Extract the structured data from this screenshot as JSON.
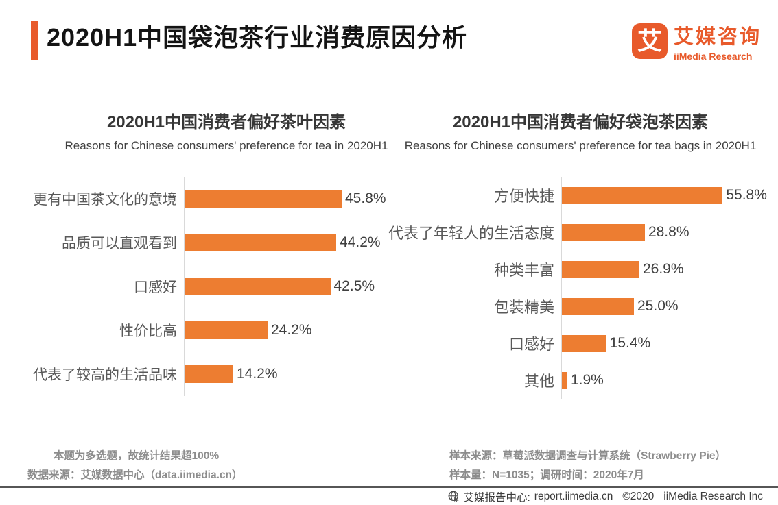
{
  "header": {
    "title": "2020H1中国袋泡茶行业消费原因分析"
  },
  "logo": {
    "mark": "艾",
    "name_cn": "艾媒咨询",
    "name_en": "iiMedia Research"
  },
  "colors": {
    "accent": "#e85a2b",
    "bar": "#ed7d31",
    "axis_line": "#d9d9d9",
    "divider": "#565656"
  },
  "chart_data": [
    {
      "type": "bar",
      "orientation": "horizontal",
      "title": "2020H1中国消费者偏好茶叶因素",
      "subtitle": "Reasons for Chinese consumers' preference for tea in 2020H1",
      "categories": [
        "更有中国茶文化的意境",
        "品质可以直观看到",
        "口感好",
        "性价比高",
        "代表了较高的生活品味"
      ],
      "values": [
        45.8,
        44.2,
        42.5,
        24.2,
        14.2
      ],
      "unit": "%",
      "xlim": [
        0,
        50
      ],
      "grid": false,
      "legend": false,
      "value_labels": [
        "45.8%",
        "44.2%",
        "42.5%",
        "24.2%",
        "14.2%"
      ]
    },
    {
      "type": "bar",
      "orientation": "horizontal",
      "title": "2020H1中国消费者偏好袋泡茶因素",
      "subtitle": "Reasons for Chinese consumers' preference for tea bags in 2020H1",
      "categories": [
        "方便快捷",
        "代表了年轻人的生活态度",
        "种类丰富",
        "包装精美",
        "口感好",
        "其他"
      ],
      "values": [
        55.8,
        28.8,
        26.9,
        25.0,
        15.4,
        1.9
      ],
      "unit": "%",
      "xlim": [
        0,
        60
      ],
      "grid": false,
      "legend": false,
      "value_labels": [
        "55.8%",
        "28.8%",
        "26.9%",
        "25.0%",
        "15.4%",
        "1.9%"
      ]
    }
  ],
  "footnotes": {
    "left": [
      "本题为多选题，故统计结果超100%",
      "数据来源：艾媒数据中心（data.iimedia.cn）"
    ],
    "right": [
      "样本来源：草莓派数据调查与计算系统（Strawberry Pie）",
      "样本量：N=1035；调研时间：2020年7月"
    ]
  },
  "bottom_bar": {
    "center_label": "艾媒报告中心:",
    "url": "report.iimedia.cn",
    "copyright": "©2020",
    "company": "iiMedia Research Inc"
  }
}
